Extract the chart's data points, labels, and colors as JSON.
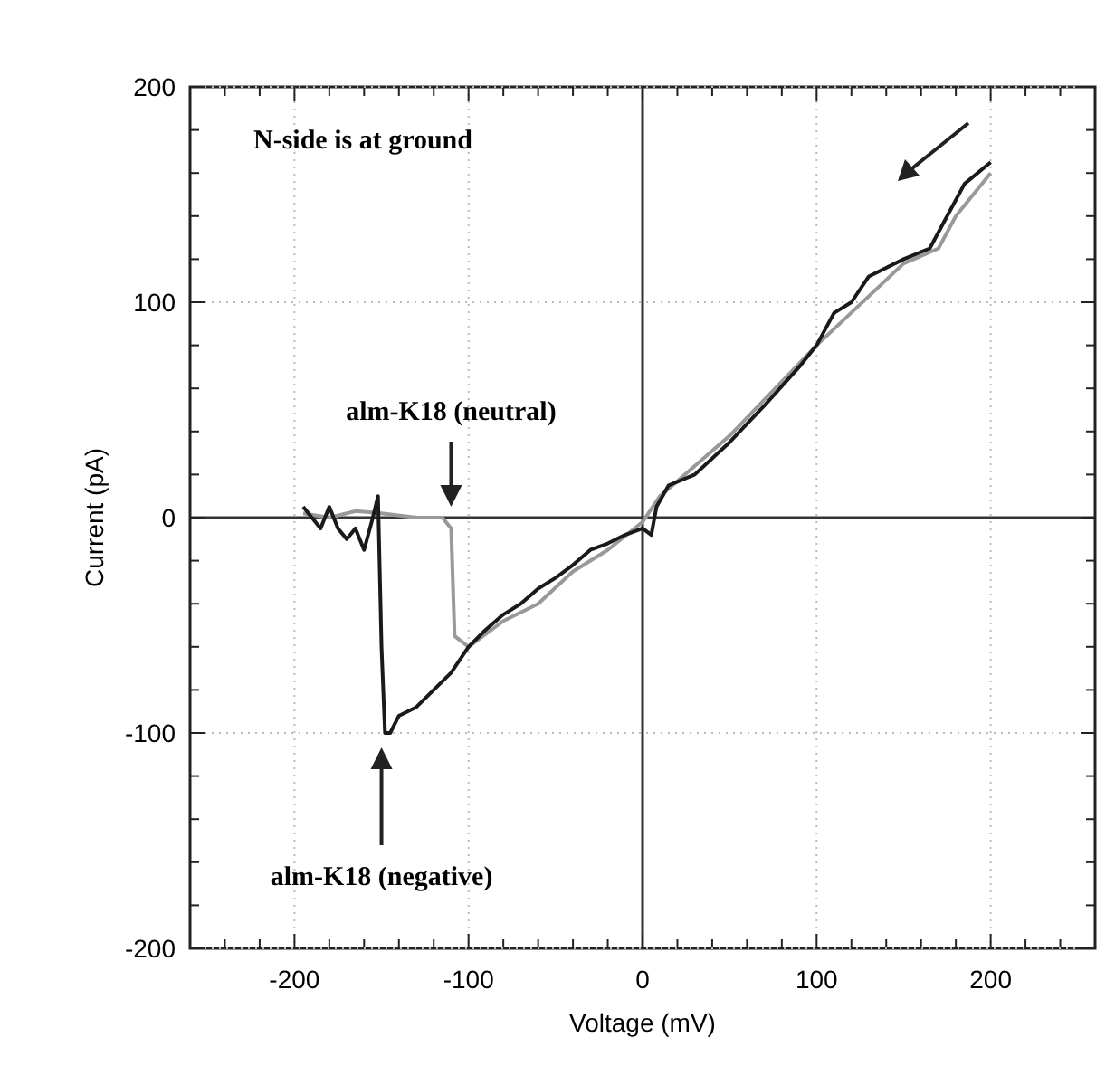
{
  "chart_data": {
    "type": "line",
    "xlabel": "Voltage (mV)",
    "ylabel": "Current (pA)",
    "xlim": [
      -260,
      260
    ],
    "ylim": [
      -200,
      200
    ],
    "xticks": [
      {
        "value": -240,
        "label": null
      },
      {
        "value": -220,
        "label": null
      },
      -200,
      {
        "value": -180,
        "label": null
      },
      {
        "value": -160,
        "label": null
      },
      {
        "value": -140,
        "label": null
      },
      {
        "value": -120,
        "label": null
      },
      -100,
      {
        "value": -80,
        "label": null
      },
      {
        "value": -60,
        "label": null
      },
      {
        "value": -40,
        "label": null
      },
      {
        "value": -20,
        "label": null
      },
      0,
      {
        "value": 20,
        "label": null
      },
      {
        "value": 40,
        "label": null
      },
      {
        "value": 60,
        "label": null
      },
      {
        "value": 80,
        "label": null
      },
      100,
      {
        "value": 120,
        "label": null
      },
      {
        "value": 140,
        "label": null
      },
      {
        "value": 160,
        "label": null
      },
      {
        "value": 180,
        "label": null
      },
      200,
      {
        "value": 220,
        "label": null
      },
      {
        "value": 240,
        "label": null
      }
    ],
    "yticks": [
      -200,
      {
        "value": -180,
        "label": null
      },
      {
        "value": -160,
        "label": null
      },
      {
        "value": -140,
        "label": null
      },
      {
        "value": -120,
        "label": null
      },
      -100,
      {
        "value": -80,
        "label": null
      },
      {
        "value": -60,
        "label": null
      },
      {
        "value": -40,
        "label": null
      },
      {
        "value": -20,
        "label": null
      },
      0,
      {
        "value": 20,
        "label": null
      },
      {
        "value": 40,
        "label": null
      },
      {
        "value": 60,
        "label": null
      },
      {
        "value": 80,
        "label": null
      },
      100,
      {
        "value": 120,
        "label": null
      },
      {
        "value": 140,
        "label": null
      },
      {
        "value": 160,
        "label": null
      },
      {
        "value": 180,
        "label": null
      },
      200
    ],
    "grid": true,
    "line_style": "solid",
    "series": [
      {
        "color": "#999999",
        "x": [
          -195,
          -180,
          -165,
          -150,
          -130,
          -115,
          -110,
          -108,
          -100,
          -80,
          -60,
          -40,
          -20,
          0,
          10,
          50,
          100,
          150,
          170,
          180,
          200
        ],
        "values": [
          2,
          0,
          3,
          2,
          0,
          0,
          -5,
          -55,
          -60,
          -48,
          -40,
          -25,
          -15,
          -2,
          10,
          38,
          80,
          118,
          125,
          140,
          160
        ]
      },
      {
        "color": "#1a1a1a",
        "x": [
          -195,
          -190,
          -185,
          -180,
          -175,
          -170,
          -165,
          -160,
          -155,
          -152,
          -150,
          -148,
          -145,
          -140,
          -130,
          -120,
          -110,
          -100,
          -90,
          -80,
          -70,
          -60,
          -50,
          -40,
          -30,
          -20,
          -10,
          0,
          5,
          8,
          15,
          30,
          50,
          70,
          90,
          100,
          110,
          120,
          130,
          150,
          165,
          175,
          185,
          200
        ],
        "values": [
          5,
          0,
          -5,
          5,
          -5,
          -10,
          -5,
          -15,
          0,
          10,
          -60,
          -100,
          -100,
          -92,
          -88,
          -80,
          -72,
          -60,
          -52,
          -45,
          -40,
          -33,
          -28,
          -22,
          -15,
          -12,
          -8,
          -5,
          -8,
          5,
          15,
          20,
          35,
          52,
          70,
          80,
          95,
          100,
          112,
          120,
          125,
          140,
          155,
          165
        ]
      }
    ],
    "annotations": [
      "N-side is at ground",
      "alm-K18 (neutral)",
      "alm-K18 (negative)"
    ]
  }
}
